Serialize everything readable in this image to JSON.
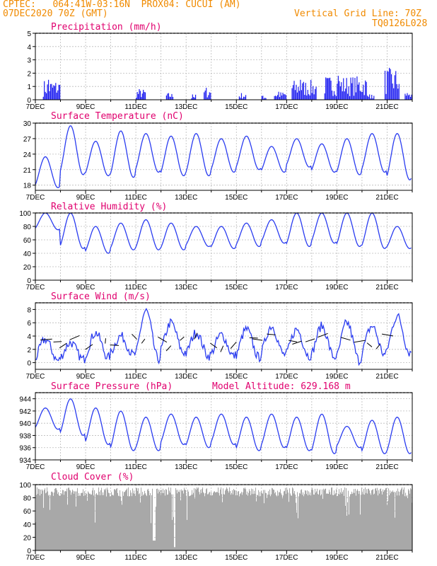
{
  "header": {
    "line1": "CPTEC:   064:41W-03:16N  PROX04: CUCUI (AM)",
    "line2": "07DEC2020 70Z (GMT)",
    "grid_note": "Vertical Grid Line: 70Z",
    "code": "TQ0126L028"
  },
  "colors": {
    "line": "#2a3cf0",
    "bar": "#1e1ef0",
    "cloud": "#a8a8a8",
    "title": "#e0006e",
    "header": "#f08a00"
  },
  "x_labels": [
    "7DEC",
    "9DEC",
    "11DEC",
    "13DEC",
    "15DEC",
    "17DEC",
    "19DEC",
    "21DEC"
  ],
  "chart_data": [
    {
      "type": "bar",
      "title": "Precipitation (mm/h)",
      "ylim": [
        0,
        5
      ],
      "yticks": [
        0,
        1,
        2,
        3,
        4,
        5
      ],
      "x_range": [
        0,
        15
      ],
      "bursts": [
        {
          "x": 0.3,
          "w": 0.7,
          "max": 1.5
        },
        {
          "x": 4.0,
          "w": 0.4,
          "max": 0.8
        },
        {
          "x": 5.2,
          "w": 0.3,
          "max": 0.5
        },
        {
          "x": 6.2,
          "w": 0.2,
          "max": 0.4
        },
        {
          "x": 6.7,
          "w": 0.3,
          "max": 0.9
        },
        {
          "x": 8.1,
          "w": 0.3,
          "max": 0.5
        },
        {
          "x": 9.0,
          "w": 0.2,
          "max": 0.3
        },
        {
          "x": 9.5,
          "w": 0.5,
          "max": 0.6
        },
        {
          "x": 10.2,
          "w": 1.0,
          "max": 1.5
        },
        {
          "x": 11.5,
          "w": 1.7,
          "max": 1.8
        },
        {
          "x": 13.2,
          "w": 0.3,
          "max": 0.4
        },
        {
          "x": 13.9,
          "w": 0.6,
          "max": 2.4
        },
        {
          "x": 14.7,
          "w": 0.3,
          "max": 0.5
        }
      ]
    },
    {
      "type": "line",
      "title": "Surface Temperature (nC)",
      "ylim": [
        17,
        30
      ],
      "yticks": [
        18,
        21,
        24,
        27,
        30
      ],
      "min_vals": [
        17.5,
        20,
        19.8,
        19.5,
        20.5,
        19.8,
        19.8,
        20.5,
        21,
        20.5,
        21.5,
        20.5,
        20,
        20.5,
        19
      ],
      "max_vals": [
        23.5,
        29.5,
        26.5,
        28.5,
        28,
        27.5,
        28,
        27,
        27.5,
        25.5,
        27,
        26,
        27,
        28,
        28
      ]
    },
    {
      "type": "line",
      "title": "Relative Humidity (%)",
      "ylim": [
        0,
        100
      ],
      "yticks": [
        0,
        20,
        40,
        60,
        80,
        100
      ],
      "min_vals": [
        75,
        47,
        40,
        45,
        45,
        45,
        50,
        47,
        50,
        55,
        50,
        55,
        50,
        47,
        47
      ],
      "max_vals": [
        100,
        100,
        80,
        85,
        90,
        85,
        80,
        80,
        85,
        90,
        100,
        100,
        100,
        100,
        80
      ]
    },
    {
      "type": "line",
      "title": "Surface Wind (m/s)",
      "ylim": [
        -1,
        9
      ],
      "yticks": [
        0,
        2,
        4,
        6,
        8
      ],
      "min_vals": [
        0.3,
        0.5,
        0.8,
        1.2,
        0.5,
        1.5,
        1.0,
        1.0,
        0.8,
        1.2,
        1.0,
        0.8,
        0.3,
        1.2,
        1.5
      ],
      "max_vals": [
        3.5,
        3.0,
        4.5,
        4.0,
        7.8,
        6.0,
        4.5,
        4.2,
        5.0,
        5.5,
        5.0,
        5.5,
        6.0,
        5.5,
        7.0
      ]
    },
    {
      "type": "line",
      "title": "Surface Pressure (hPa)",
      "subtitle": "Model Altitude: 629.168  m",
      "ylim": [
        934,
        945
      ],
      "yticks": [
        934,
        936,
        938,
        940,
        942,
        944
      ],
      "min_vals": [
        939,
        938,
        936.5,
        935.5,
        935.5,
        936.5,
        936,
        936.5,
        935.5,
        936,
        935.5,
        935,
        936,
        935,
        935
      ],
      "max_vals": [
        942.5,
        944,
        942.5,
        942,
        941,
        941.5,
        941,
        941.5,
        941,
        941.5,
        941,
        941.5,
        939.5,
        940.5,
        941
      ]
    },
    {
      "type": "area",
      "title": "Cloud Cover (%)",
      "ylim": [
        0,
        100
      ],
      "yticks": [
        0,
        20,
        40,
        60,
        80,
        100
      ]
    }
  ]
}
